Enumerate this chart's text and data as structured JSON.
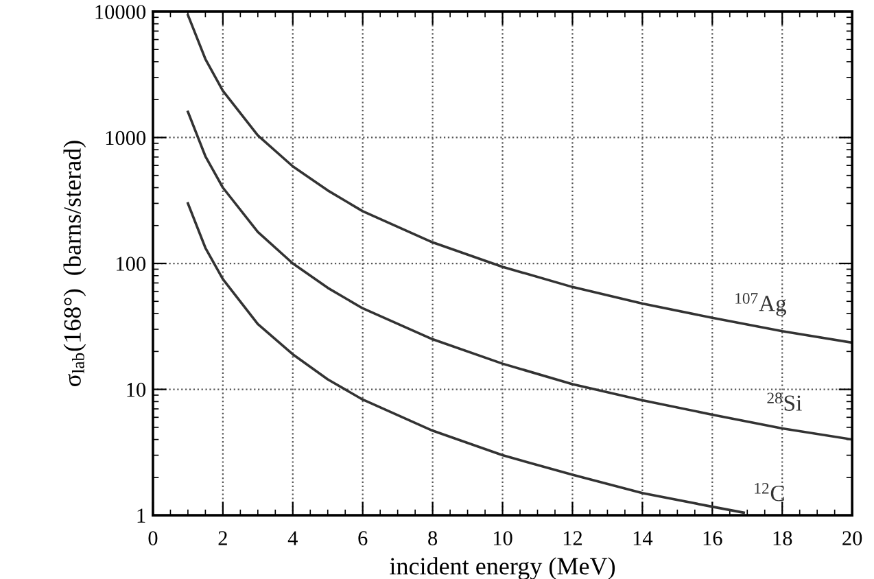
{
  "chart_data": {
    "type": "line",
    "xlabel": "incident energy (MeV)",
    "ylabel": "σ$_{lab}$(168°)  (barns/sterad)",
    "log": "y",
    "grid": true,
    "marker": "none",
    "line_style": "solid",
    "xlim": [
      0,
      20
    ],
    "xticks": [
      0,
      2,
      4,
      6,
      8,
      10,
      12,
      14,
      16,
      18,
      20
    ],
    "ylim": [
      1,
      10000
    ],
    "yticks": [
      1,
      10,
      100,
      1000,
      10000
    ],
    "series": [
      {
        "name": "$^{107}$Ag",
        "color": "#333333",
        "x": [
          1,
          1.5,
          2,
          3,
          4,
          5,
          6,
          8,
          10,
          12,
          14,
          16,
          18,
          20
        ],
        "values": [
          9400,
          4200,
          2350,
          1040,
          590,
          380,
          260,
          147,
          94,
          65,
          48,
          37,
          29,
          23.5
        ]
      },
      {
        "name": "$^{28}$Si",
        "color": "#333333",
        "x": [
          1,
          1.5,
          2,
          3,
          4,
          5,
          6,
          8,
          10,
          12,
          14,
          16,
          18,
          20
        ],
        "values": [
          1600,
          710,
          400,
          178,
          100,
          64,
          44,
          25,
          16,
          11,
          8.2,
          6.3,
          4.9,
          4.0
        ]
      },
      {
        "name": "$^{12}$C",
        "color": "#333333",
        "x": [
          1,
          1.5,
          2,
          3,
          4,
          5,
          6,
          8,
          10,
          12,
          14,
          16,
          16.9
        ],
        "values": [
          300,
          133,
          75,
          33,
          19,
          12,
          8.3,
          4.7,
          3.0,
          2.1,
          1.5,
          1.17,
          1.05
        ]
      }
    ]
  }
}
